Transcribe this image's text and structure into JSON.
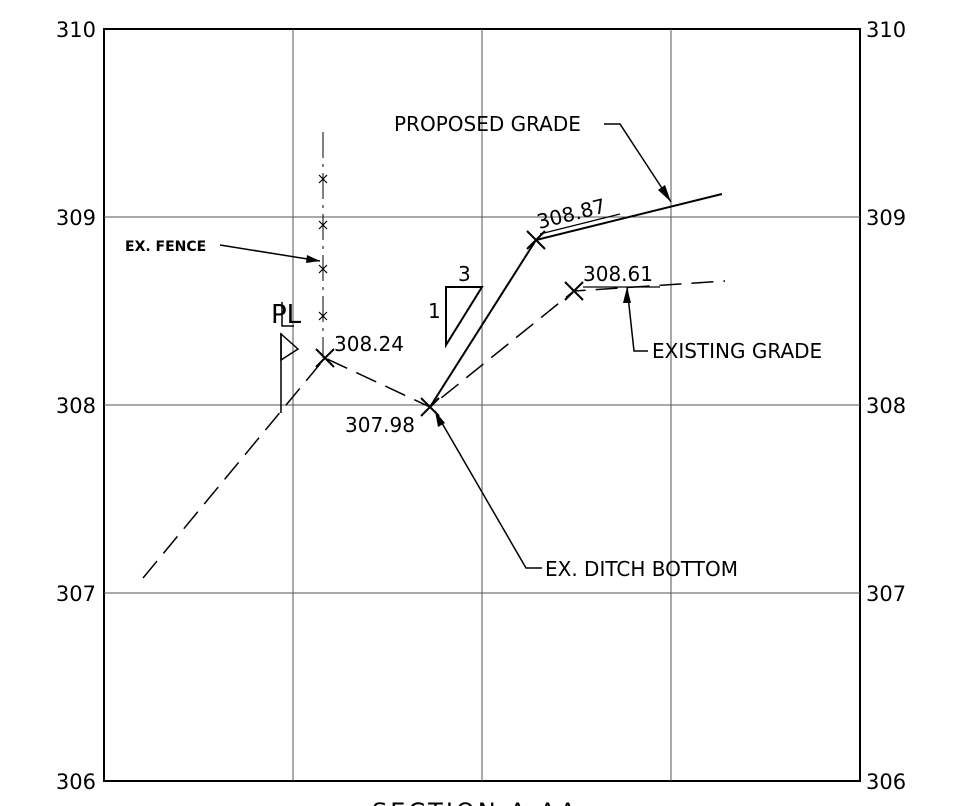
{
  "figure": {
    "left_axis_labels": [
      "310",
      "309",
      "308",
      "307",
      "306"
    ],
    "right_axis_labels": [
      "310",
      "309",
      "308",
      "307",
      "306"
    ],
    "labels": {
      "proposed_grade": "PROPOSED GRADE",
      "ex_fence": "EX. FENCE",
      "existing_grade": "EXISTING GRADE",
      "ex_ditch_bottom": "EX. DITCH BOTTOM",
      "property_line": "PL"
    },
    "elevations": {
      "pt_30824": "308.24",
      "pt_30798": "307.98",
      "pt_30887": "308.87",
      "pt_30861": "308.61"
    },
    "slope": {
      "rise": "1",
      "run": "3"
    },
    "title": "SECTION A-AA"
  },
  "colors": {
    "line": "#000000",
    "grid": "#444444",
    "background": "#ffffff"
  }
}
